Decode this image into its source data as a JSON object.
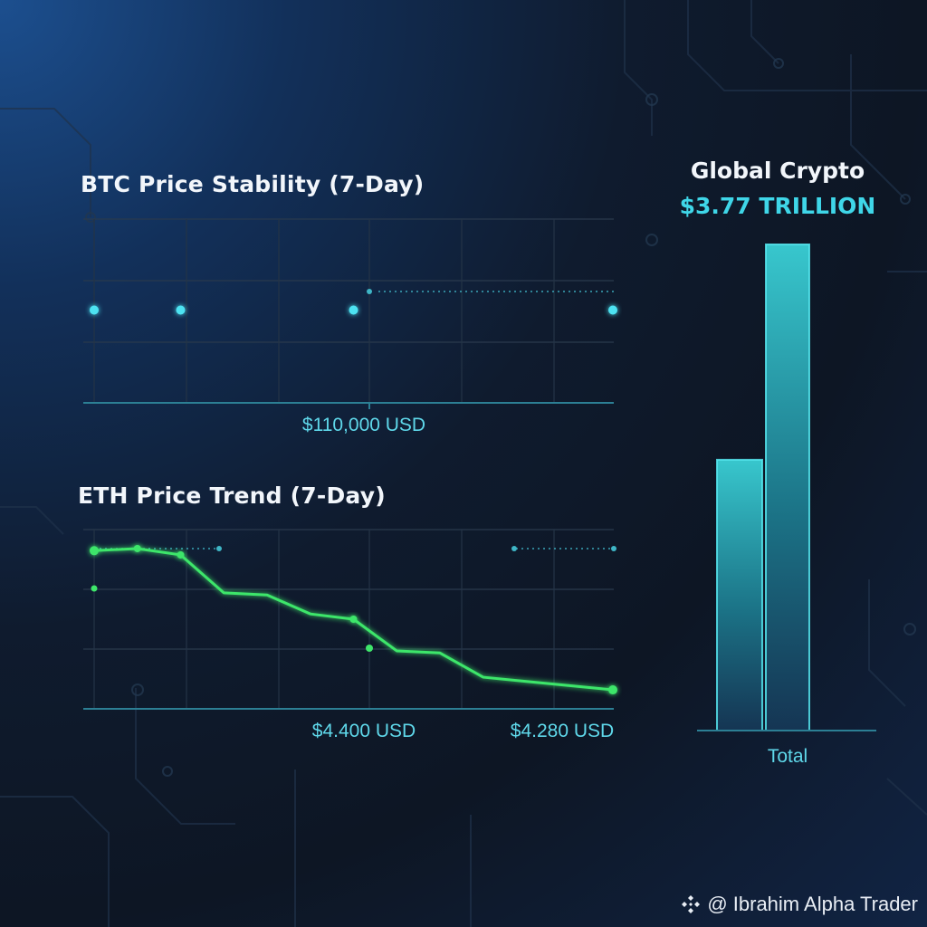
{
  "chart_data": [
    {
      "type": "line",
      "title": "BTC Price Stability (7-Day)",
      "x": [
        1,
        2,
        3,
        4,
        5,
        6,
        7
      ],
      "series": [
        {
          "values": [
            110000,
            110000,
            110000,
            110000,
            110000,
            110000,
            110000
          ]
        }
      ],
      "tick_labels": [
        "$110,000 USD"
      ],
      "grid": true,
      "color": "#4de3f2"
    },
    {
      "type": "line",
      "title": "ETH Price Trend (7-Day)",
      "x": [
        1,
        1.5,
        2,
        2.5,
        3,
        3.5,
        4,
        4.5,
        5,
        5.5,
        6,
        6.5,
        7
      ],
      "series": [
        {
          "values": [
            4.48,
            4.482,
            4.476,
            4.44,
            4.438,
            4.42,
            4.415,
            4.385,
            4.383,
            4.36,
            4.356,
            4.352,
            4.348
          ]
        }
      ],
      "tick_labels": [
        "$4.400 USD",
        "$4.280 USD"
      ],
      "grid": true,
      "color": "#3ee66a"
    },
    {
      "type": "bar",
      "title": "Global Crypto",
      "subtitle": "$3.77 TRILLION",
      "categories": [
        "Total"
      ],
      "series": [
        {
          "values": [
            2.1
          ]
        },
        {
          "values": [
            3.77
          ]
        }
      ],
      "ylim": [
        0,
        3.77
      ],
      "color": "#2fbfc8"
    }
  ],
  "footer": {
    "handle": "@ Ibrahim Alpha Trader",
    "logo_icon": "binance-diamond-icon"
  }
}
